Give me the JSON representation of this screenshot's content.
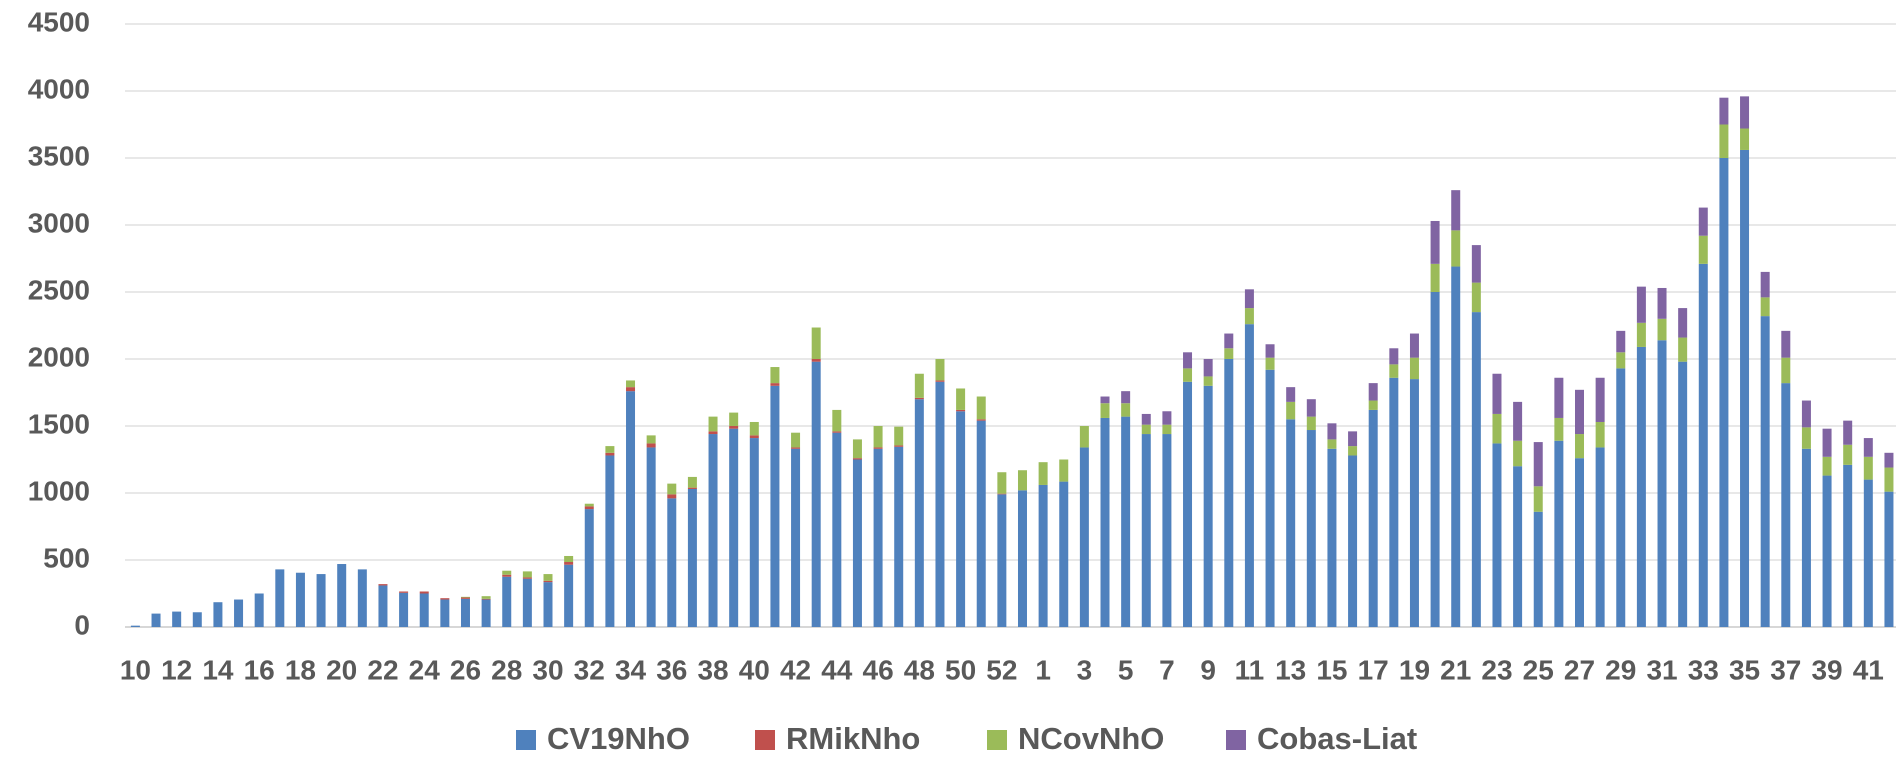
{
  "chart_data": {
    "type": "stacked_bar",
    "categories": [
      "10",
      null,
      "12",
      null,
      "14",
      null,
      "16",
      null,
      "18",
      null,
      "20",
      null,
      "22",
      null,
      "24",
      null,
      "26",
      null,
      "28",
      null,
      "30",
      null,
      "32",
      null,
      "34",
      null,
      "36",
      null,
      "38",
      null,
      "40",
      null,
      "42",
      null,
      "44",
      null,
      "46",
      null,
      "48",
      null,
      "50",
      null,
      "52",
      null,
      "1",
      null,
      "3",
      null,
      "5",
      null,
      "7",
      null,
      "9",
      null,
      "11",
      null,
      "13",
      null,
      "15",
      null,
      "17",
      null,
      "19",
      null,
      "21",
      null,
      "23",
      null,
      "25",
      null,
      "27",
      null,
      "29",
      null,
      "31",
      null,
      "33",
      null,
      "35",
      null,
      "37",
      null,
      "39",
      null,
      "41",
      null
    ],
    "series": [
      {
        "name": "CV19NhO",
        "color": "#4f81bd",
        "values": [
          10,
          100,
          115,
          110,
          185,
          205,
          250,
          430,
          405,
          395,
          470,
          430,
          310,
          255,
          250,
          205,
          210,
          205,
          375,
          360,
          335,
          465,
          880,
          1280,
          1760,
          1340,
          960,
          1030,
          1440,
          1480,
          1410,
          1800,
          1330,
          1980,
          1450,
          1250,
          1330,
          1345,
          1700,
          1830,
          1610,
          1540,
          990,
          1020,
          1060,
          1085,
          1340,
          1560,
          1570,
          1440,
          1440,
          1830,
          1800,
          2000,
          2260,
          1920,
          1550,
          1470,
          1330,
          1280,
          1620,
          1860,
          1850,
          2500,
          2690,
          2350,
          1370,
          1200,
          860,
          1390,
          1260,
          1340,
          1930,
          2090,
          2140,
          1980,
          2710,
          3500,
          3560,
          2320,
          1820,
          1330,
          1130,
          1210,
          1100,
          1010
        ]
      },
      {
        "name": "RMikNho",
        "color": "#c0504d",
        "values": [
          0,
          0,
          0,
          0,
          0,
          0,
          0,
          0,
          0,
          0,
          0,
          0,
          10,
          10,
          15,
          10,
          10,
          5,
          15,
          10,
          10,
          20,
          20,
          20,
          30,
          30,
          30,
          10,
          20,
          20,
          20,
          20,
          10,
          20,
          10,
          10,
          10,
          10,
          10,
          10,
          10,
          10,
          5,
          0,
          0,
          0,
          0,
          0,
          0,
          0,
          0,
          0,
          0,
          0,
          0,
          0,
          0,
          0,
          0,
          0,
          0,
          0,
          0,
          0,
          0,
          0,
          0,
          0,
          0,
          0,
          0,
          0,
          0,
          0,
          0,
          0,
          0,
          0,
          0,
          0,
          0,
          0,
          0,
          0,
          0,
          0
        ]
      },
      {
        "name": "NCovNhO",
        "color": "#9bbb59",
        "values": [
          0,
          0,
          0,
          0,
          0,
          0,
          0,
          0,
          0,
          0,
          0,
          0,
          0,
          0,
          0,
          0,
          5,
          20,
          30,
          45,
          50,
          45,
          20,
          50,
          50,
          60,
          80,
          80,
          110,
          100,
          100,
          120,
          110,
          235,
          160,
          140,
          160,
          140,
          180,
          160,
          160,
          170,
          160,
          150,
          170,
          165,
          160,
          110,
          100,
          70,
          70,
          100,
          70,
          80,
          120,
          90,
          130,
          100,
          70,
          70,
          70,
          100,
          160,
          210,
          270,
          220,
          220,
          190,
          190,
          170,
          180,
          190,
          120,
          180,
          160,
          180,
          210,
          250,
          160,
          140,
          190,
          160,
          140,
          150,
          170,
          180
        ]
      },
      {
        "name": "Cobas-Liat",
        "color": "#8064a2",
        "values": [
          0,
          0,
          0,
          0,
          0,
          0,
          0,
          0,
          0,
          0,
          0,
          0,
          0,
          0,
          0,
          0,
          0,
          0,
          0,
          0,
          0,
          0,
          0,
          0,
          0,
          0,
          0,
          0,
          0,
          0,
          0,
          0,
          0,
          0,
          0,
          0,
          0,
          0,
          0,
          0,
          0,
          0,
          0,
          0,
          0,
          0,
          0,
          50,
          90,
          80,
          100,
          120,
          130,
          110,
          140,
          100,
          110,
          130,
          120,
          110,
          130,
          120,
          180,
          320,
          300,
          280,
          300,
          290,
          330,
          300,
          330,
          330,
          160,
          270,
          230,
          220,
          210,
          200,
          240,
          190,
          200,
          200,
          210,
          180,
          140,
          110
        ]
      }
    ],
    "ylim": [
      0,
      4500
    ],
    "yticks": [
      0,
      500,
      1000,
      1500,
      2000,
      2500,
      3000,
      3500,
      4000,
      4500
    ],
    "grid": true,
    "legend": "bottom"
  }
}
